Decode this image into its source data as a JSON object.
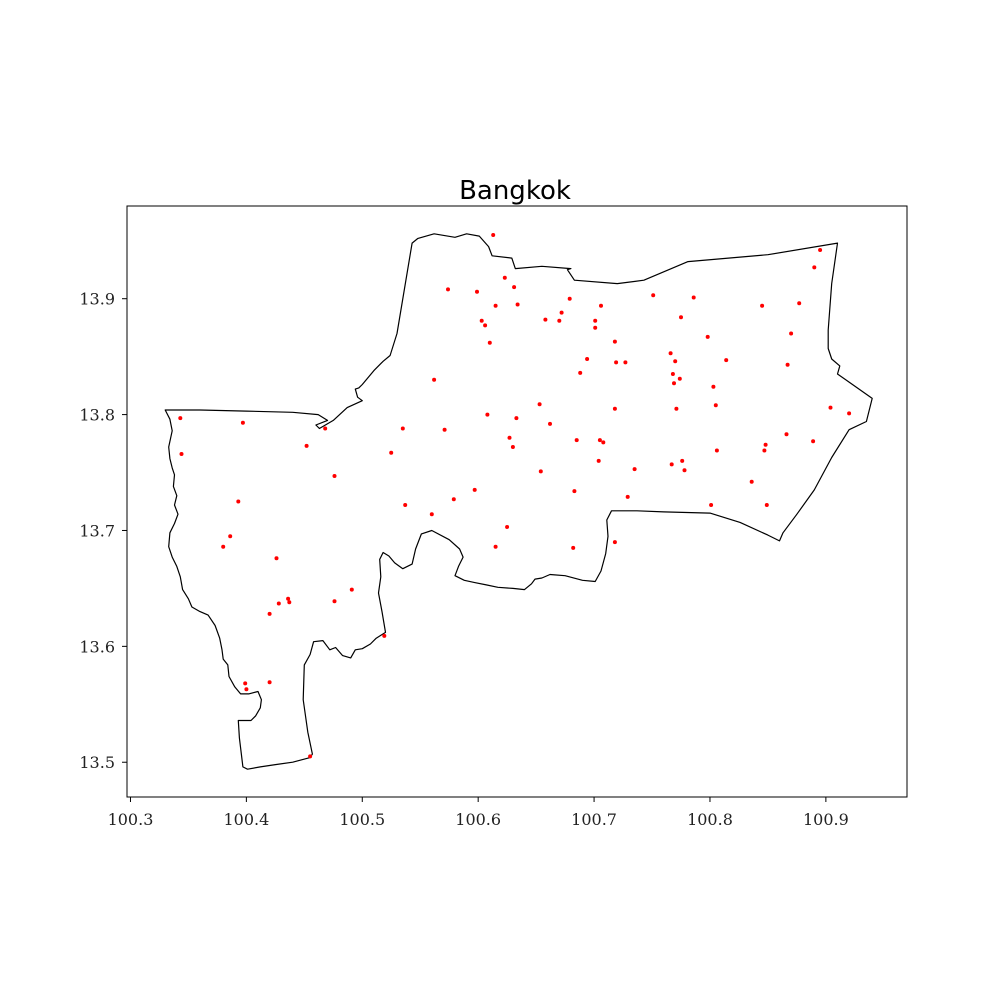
{
  "chart_data": {
    "type": "scatter",
    "title": "Bangkok",
    "xlabel": "",
    "ylabel": "",
    "xlim": [
      100.297,
      100.97
    ],
    "ylim": [
      13.47,
      13.98
    ],
    "xticks": [
      100.3,
      100.4,
      100.5,
      100.6,
      100.7,
      100.8,
      100.9
    ],
    "yticks": [
      13.5,
      13.6,
      13.7,
      13.8,
      13.9
    ],
    "xtick_labels": [
      "100.3",
      "100.4",
      "100.5",
      "100.6",
      "100.7",
      "100.8",
      "100.9"
    ],
    "ytick_labels": [
      "13.5",
      "13.6",
      "13.7",
      "13.8",
      "13.9"
    ],
    "grid": false,
    "point_color": "#ff0000",
    "boundary_color": "#000000",
    "boundary": [
      [
        100.33,
        13.804
      ],
      [
        100.334,
        13.796
      ],
      [
        100.336,
        13.786
      ],
      [
        100.333,
        13.772
      ],
      [
        100.334,
        13.762
      ],
      [
        100.336,
        13.754
      ],
      [
        100.338,
        13.748
      ],
      [
        100.337,
        13.738
      ],
      [
        100.34,
        13.73
      ],
      [
        100.338,
        13.722
      ],
      [
        100.341,
        13.714
      ],
      [
        100.338,
        13.706
      ],
      [
        100.334,
        13.698
      ],
      [
        100.333,
        13.686
      ],
      [
        100.336,
        13.677
      ],
      [
        100.34,
        13.669
      ],
      [
        100.343,
        13.66
      ],
      [
        100.345,
        13.649
      ],
      [
        100.35,
        13.641
      ],
      [
        100.353,
        13.634
      ],
      [
        100.36,
        13.63
      ],
      [
        100.367,
        13.627
      ],
      [
        100.373,
        13.618
      ],
      [
        100.377,
        13.607
      ],
      [
        100.379,
        13.597
      ],
      [
        100.38,
        13.589
      ],
      [
        100.384,
        13.584
      ],
      [
        100.385,
        13.574
      ],
      [
        100.39,
        13.565
      ],
      [
        100.395,
        13.559
      ],
      [
        100.402,
        13.559
      ],
      [
        100.41,
        13.561
      ],
      [
        100.413,
        13.554
      ],
      [
        100.412,
        13.547
      ],
      [
        100.408,
        13.54
      ],
      [
        100.404,
        13.536
      ],
      [
        100.399,
        13.536
      ],
      [
        100.393,
        13.536
      ],
      [
        100.394,
        13.521
      ],
      [
        100.397,
        13.496
      ],
      [
        100.401,
        13.494
      ],
      [
        100.412,
        13.496
      ],
      [
        100.425,
        13.498
      ],
      [
        100.44,
        13.5
      ],
      [
        100.455,
        13.504
      ],
      [
        100.457,
        13.507
      ],
      [
        100.453,
        13.526
      ],
      [
        100.449,
        13.554
      ],
      [
        100.45,
        13.584
      ],
      [
        100.455,
        13.593
      ],
      [
        100.458,
        13.604
      ],
      [
        100.466,
        13.605
      ],
      [
        100.472,
        13.597
      ],
      [
        100.477,
        13.599
      ],
      [
        100.483,
        13.592
      ],
      [
        100.49,
        13.59
      ],
      [
        100.494,
        13.597
      ],
      [
        100.5,
        13.598
      ],
      [
        100.507,
        13.602
      ],
      [
        100.512,
        13.607
      ],
      [
        100.52,
        13.612
      ],
      [
        100.517,
        13.63
      ],
      [
        100.514,
        13.646
      ],
      [
        100.516,
        13.66
      ],
      [
        100.515,
        13.675
      ],
      [
        100.518,
        13.681
      ],
      [
        100.523,
        13.678
      ],
      [
        100.528,
        13.672
      ],
      [
        100.535,
        13.667
      ],
      [
        100.543,
        13.671
      ],
      [
        100.546,
        13.684
      ],
      [
        100.551,
        13.697
      ],
      [
        100.56,
        13.7
      ],
      [
        100.575,
        13.692
      ],
      [
        100.584,
        13.684
      ],
      [
        100.587,
        13.677
      ],
      [
        100.583,
        13.669
      ],
      [
        100.58,
        13.661
      ],
      [
        100.588,
        13.657
      ],
      [
        100.597,
        13.655
      ],
      [
        100.607,
        13.653
      ],
      [
        100.617,
        13.651
      ],
      [
        100.63,
        13.65
      ],
      [
        100.64,
        13.649
      ],
      [
        100.646,
        13.654
      ],
      [
        100.649,
        13.658
      ],
      [
        100.655,
        13.659
      ],
      [
        100.662,
        13.662
      ],
      [
        100.675,
        13.661
      ],
      [
        100.69,
        13.657
      ],
      [
        100.701,
        13.656
      ],
      [
        100.706,
        13.665
      ],
      [
        100.71,
        13.68
      ],
      [
        100.712,
        13.695
      ],
      [
        100.711,
        13.709
      ],
      [
        100.715,
        13.717
      ],
      [
        100.737,
        13.717
      ],
      [
        100.76,
        13.716
      ],
      [
        100.8,
        13.715
      ],
      [
        100.826,
        13.707
      ],
      [
        100.85,
        13.696
      ],
      [
        100.86,
        13.691
      ],
      [
        100.863,
        13.698
      ],
      [
        100.875,
        13.714
      ],
      [
        100.89,
        13.735
      ],
      [
        100.905,
        13.763
      ],
      [
        100.92,
        13.787
      ],
      [
        100.935,
        13.794
      ],
      [
        100.94,
        13.814
      ],
      [
        100.92,
        13.828
      ],
      [
        100.91,
        13.835
      ],
      [
        100.912,
        13.842
      ],
      [
        100.905,
        13.848
      ],
      [
        100.902,
        13.857
      ],
      [
        100.902,
        13.873
      ],
      [
        100.905,
        13.913
      ],
      [
        100.91,
        13.948
      ],
      [
        100.85,
        13.938
      ],
      [
        100.781,
        13.932
      ],
      [
        100.743,
        13.916
      ],
      [
        100.72,
        13.913
      ],
      [
        100.683,
        13.916
      ],
      [
        100.677,
        13.925
      ],
      [
        100.68,
        13.926
      ],
      [
        100.655,
        13.928
      ],
      [
        100.632,
        13.926
      ],
      [
        100.629,
        13.935
      ],
      [
        100.612,
        13.937
      ],
      [
        100.609,
        13.945
      ],
      [
        100.601,
        13.954
      ],
      [
        100.59,
        13.956
      ],
      [
        100.58,
        13.953
      ],
      [
        100.562,
        13.956
      ],
      [
        100.548,
        13.952
      ],
      [
        100.543,
        13.948
      ],
      [
        100.53,
        13.87
      ],
      [
        100.524,
        13.851
      ],
      [
        100.518,
        13.846
      ],
      [
        100.51,
        13.838
      ],
      [
        100.5,
        13.826
      ],
      [
        100.497,
        13.823
      ],
      [
        100.494,
        13.822
      ],
      [
        100.496,
        13.815
      ],
      [
        100.5,
        13.812
      ],
      [
        100.487,
        13.806
      ],
      [
        100.475,
        13.795
      ],
      [
        100.463,
        13.788
      ],
      [
        100.46,
        13.791
      ],
      [
        100.47,
        13.795
      ],
      [
        100.462,
        13.8
      ],
      [
        100.44,
        13.802
      ],
      [
        100.4,
        13.803
      ],
      [
        100.36,
        13.804
      ],
      [
        100.33,
        13.804
      ]
    ],
    "x": [
      100.343,
      100.344,
      100.397,
      100.393,
      100.386,
      100.38,
      100.426,
      100.4,
      100.452,
      100.476,
      100.468,
      100.428,
      100.436,
      100.437,
      100.42,
      100.42,
      100.399,
      100.455,
      100.476,
      100.491,
      100.519,
      100.525,
      100.535,
      100.537,
      100.56,
      100.562,
      100.571,
      100.574,
      100.579,
      100.597,
      100.599,
      100.603,
      100.606,
      100.61,
      100.608,
      100.615,
      100.615,
      100.623,
      100.631,
      100.634,
      100.627,
      100.63,
      100.633,
      100.625,
      100.613,
      100.653,
      100.658,
      100.662,
      100.654,
      100.683,
      100.685,
      100.67,
      100.672,
      100.679,
      100.688,
      100.694,
      100.701,
      100.706,
      100.705,
      100.701,
      100.704,
      100.708,
      100.682,
      100.718,
      100.719,
      100.718,
      100.727,
      100.729,
      100.735,
      100.751,
      100.766,
      100.77,
      100.769,
      100.771,
      100.774,
      100.775,
      100.776,
      100.778,
      100.786,
      100.798,
      100.803,
      100.805,
      100.806,
      100.814,
      100.801,
      100.767,
      100.768,
      100.836,
      100.845,
      100.848,
      100.847,
      100.849,
      100.866,
      100.867,
      100.87,
      100.877,
      100.889,
      100.89,
      100.895,
      100.904,
      100.92,
      100.718
    ],
    "y": [
      13.797,
      13.766,
      13.793,
      13.725,
      13.695,
      13.686,
      13.676,
      13.563,
      13.773,
      13.747,
      13.788,
      13.637,
      13.641,
      13.638,
      13.628,
      13.569,
      13.568,
      13.505,
      13.639,
      13.649,
      13.609,
      13.767,
      13.788,
      13.722,
      13.714,
      13.83,
      13.787,
      13.908,
      13.727,
      13.735,
      13.906,
      13.881,
      13.877,
      13.862,
      13.8,
      13.894,
      13.686,
      13.918,
      13.91,
      13.895,
      13.78,
      13.772,
      13.797,
      13.703,
      13.955,
      13.809,
      13.882,
      13.792,
      13.751,
      13.734,
      13.778,
      13.881,
      13.888,
      13.9,
      13.836,
      13.848,
      13.881,
      13.894,
      13.778,
      13.875,
      13.76,
      13.776,
      13.685,
      13.863,
      13.845,
      13.805,
      13.845,
      13.729,
      13.753,
      13.903,
      13.853,
      13.846,
      13.827,
      13.805,
      13.831,
      13.884,
      13.76,
      13.752,
      13.901,
      13.867,
      13.824,
      13.808,
      13.769,
      13.847,
      13.722,
      13.757,
      13.835,
      13.742,
      13.894,
      13.774,
      13.769,
      13.722,
      13.783,
      13.843,
      13.87,
      13.896,
      13.777,
      13.927,
      13.942,
      13.806,
      13.801,
      13.69
    ]
  }
}
